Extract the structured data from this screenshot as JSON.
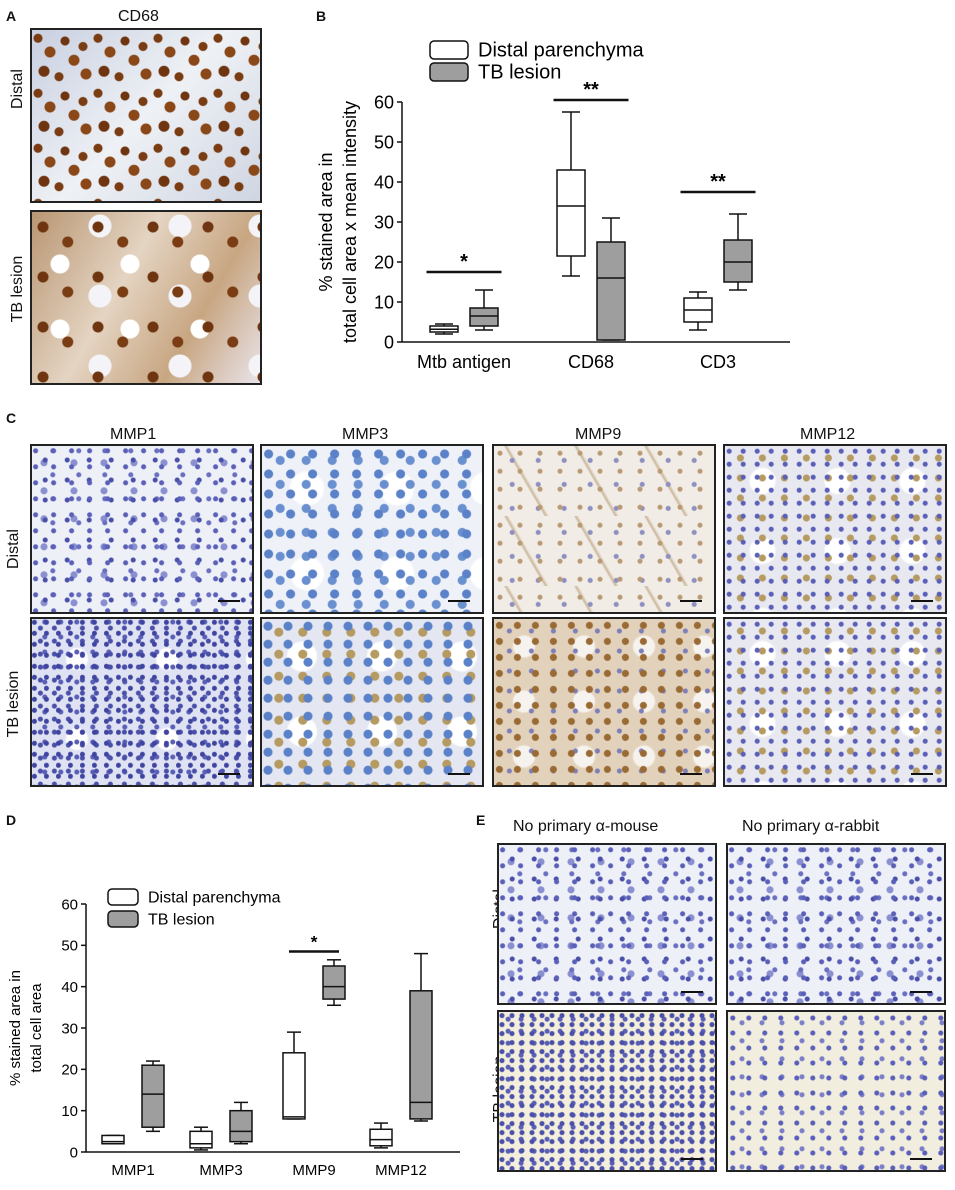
{
  "panels": {
    "A": {
      "label": "A",
      "title": "CD68",
      "rows": [
        "Distal",
        "TB lesion"
      ],
      "images": [
        {
          "name": "cd68-distal",
          "texture": "t-brown-spots"
        },
        {
          "name": "cd68-tb-lesion",
          "texture": "t-brown-tissue"
        }
      ]
    },
    "B": {
      "label": "B"
    },
    "C": {
      "label": "C",
      "columns": [
        "MMP1",
        "MMP3",
        "MMP9",
        "MMP12"
      ],
      "rows": [
        "Distal",
        "TB lesion"
      ],
      "textures": [
        [
          "t-blue-sparse",
          "t-blue-cells",
          "t-pale-brown",
          "t-blue-tan"
        ],
        [
          "t-blue-dense",
          "t-blue-cells-tan",
          "t-brown-strong",
          "t-blue-tan"
        ]
      ]
    },
    "D": {
      "label": "D"
    },
    "E": {
      "label": "E",
      "columns": [
        "No primary α-mouse",
        "No primary α-rabbit"
      ],
      "rows": [
        "Distal",
        "TB lesion"
      ],
      "textures": [
        [
          "t-blue-sparse",
          "t-blue-sparse"
        ],
        [
          "t-yellow-blue",
          "t-yellow-sparse"
        ]
      ]
    }
  },
  "chart_data": [
    {
      "panel": "B",
      "type": "box",
      "ylabel": [
        "% stained area in",
        "total cell area x mean intensity"
      ],
      "ylim": [
        0,
        60
      ],
      "yticks": [
        0,
        10,
        20,
        30,
        40,
        50,
        60
      ],
      "categories": [
        "Mtb antigen",
        "CD68",
        "CD3"
      ],
      "legend": {
        "position": "top",
        "entries": [
          "Distal parenchyma",
          "TB lesion"
        ]
      },
      "series": [
        {
          "name": "Distal parenchyma",
          "color": "#ffffff",
          "boxes": [
            {
              "min": 2,
              "q1": 2.5,
              "median": 3.2,
              "q3": 4,
              "max": 4.5
            },
            {
              "min": 16.5,
              "q1": 21.5,
              "median": 34,
              "q3": 43,
              "max": 57.5
            },
            {
              "min": 3,
              "q1": 5,
              "median": 8,
              "q3": 11,
              "max": 12.5
            }
          ]
        },
        {
          "name": "TB lesion",
          "color": "#9e9e9e",
          "boxes": [
            {
              "min": 3,
              "q1": 4,
              "median": 6.5,
              "q3": 8.5,
              "max": 13
            },
            {
              "min": 0.5,
              "q1": 0.5,
              "median": 16,
              "q3": 25,
              "max": 31
            },
            {
              "min": 13,
              "q1": 15,
              "median": 20,
              "q3": 25.5,
              "max": 32
            }
          ]
        }
      ],
      "significance": [
        {
          "category": 0,
          "label": "*",
          "y": 17.5
        },
        {
          "category": 1,
          "label": "**",
          "y": 60.5
        },
        {
          "category": 2,
          "label": "**",
          "y": 37.5
        }
      ]
    },
    {
      "panel": "D",
      "type": "box",
      "ylabel": [
        "% stained area in",
        "total cell area"
      ],
      "ylim": [
        0,
        60
      ],
      "yticks": [
        0,
        10,
        20,
        30,
        40,
        50,
        60
      ],
      "categories": [
        "MMP1",
        "MMP3",
        "MMP9",
        "MMP12"
      ],
      "legend": {
        "position": "top-left",
        "entries": [
          "Distal parenchyma",
          "TB lesion"
        ]
      },
      "series": [
        {
          "name": "Distal parenchyma",
          "color": "#ffffff",
          "boxes": [
            {
              "min": 2,
              "q1": 2,
              "median": 2.5,
              "q3": 4,
              "max": 4
            },
            {
              "min": 0.5,
              "q1": 1,
              "median": 2,
              "q3": 5,
              "max": 6
            },
            {
              "min": 8,
              "q1": 8,
              "median": 8.5,
              "q3": 24,
              "max": 29
            },
            {
              "min": 1,
              "q1": 1.5,
              "median": 3,
              "q3": 5.5,
              "max": 7
            }
          ]
        },
        {
          "name": "TB lesion",
          "color": "#9e9e9e",
          "boxes": [
            {
              "min": 5,
              "q1": 6,
              "median": 14,
              "q3": 21,
              "max": 22
            },
            {
              "min": 2,
              "q1": 2.5,
              "median": 5,
              "q3": 10,
              "max": 12
            },
            {
              "min": 35.5,
              "q1": 37,
              "median": 40,
              "q3": 45,
              "max": 46.5
            },
            {
              "min": 7.5,
              "q1": 8,
              "median": 12,
              "q3": 39,
              "max": 48
            }
          ]
        }
      ],
      "significance": [
        {
          "category": 2,
          "label": "*",
          "y": 48.5
        }
      ]
    }
  ]
}
